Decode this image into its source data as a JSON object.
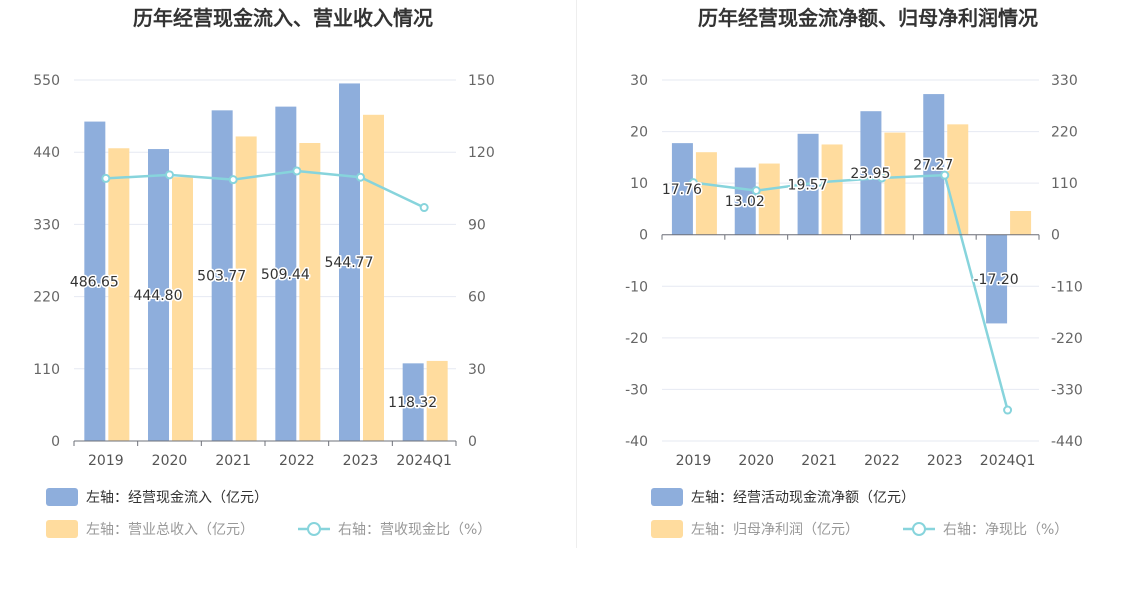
{
  "charts": [
    {
      "id": "left",
      "title": "历年经营现金流入、营业收入情况",
      "categories": [
        "2019",
        "2020",
        "2021",
        "2022",
        "2023",
        "2024Q1"
      ],
      "left_axis": {
        "min": 0,
        "max": 550,
        "ticks": [
          "0",
          "110",
          "220",
          "330",
          "440",
          "550"
        ]
      },
      "right_axis": {
        "min": 0,
        "max": 150,
        "ticks": [
          "0",
          "30",
          "60",
          "90",
          "120",
          "150"
        ]
      },
      "bar_series": [
        {
          "name": "左轴：经营现金流入（亿元）",
          "color": "#8eaedc",
          "values": [
            486.65,
            444.8,
            503.77,
            509.44,
            544.77,
            118.32
          ]
        },
        {
          "name": "左轴：营业总收入（亿元）",
          "color": "#ffdc9e",
          "values": [
            446,
            402,
            464,
            454,
            497,
            122
          ]
        }
      ],
      "line_series": {
        "name": "右轴：营收现金比（%）",
        "color": "#87d4dc",
        "values": [
          109.1,
          110.6,
          108.6,
          112.2,
          109.6,
          97.0
        ]
      },
      "data_labels": [
        "486.65",
        "444.80",
        "503.77",
        "509.44",
        "544.77",
        "118.32"
      ]
    },
    {
      "id": "right",
      "title": "历年经营现金流净额、归母净利润情况",
      "categories": [
        "2019",
        "2020",
        "2021",
        "2022",
        "2023",
        "2024Q1"
      ],
      "left_axis": {
        "min": -40,
        "max": 30,
        "ticks": [
          "-40",
          "-30",
          "-20",
          "-10",
          "0",
          "10",
          "20",
          "30"
        ]
      },
      "right_axis": {
        "min": -440,
        "max": 330,
        "ticks": [
          "-440",
          "-330",
          "-220",
          "-110",
          "0",
          "110",
          "220",
          "330"
        ]
      },
      "bar_series": [
        {
          "name": "左轴：经营活动现金流净额（亿元）",
          "color": "#8eaedc",
          "values": [
            17.76,
            13.02,
            19.57,
            23.95,
            27.27,
            -17.2
          ]
        },
        {
          "name": "左轴：归母净利润（亿元）",
          "color": "#ffdc9e",
          "values": [
            16.0,
            13.8,
            17.5,
            19.8,
            21.4,
            4.6
          ]
        }
      ],
      "line_series": {
        "name": "右轴：净现比（%）",
        "color": "#87d4dc",
        "values": [
          111,
          94,
          112,
          121,
          127,
          -374
        ]
      },
      "data_labels": [
        "17.76",
        "13.02",
        "19.57",
        "23.95",
        "27.27",
        "-17.20"
      ]
    }
  ]
}
